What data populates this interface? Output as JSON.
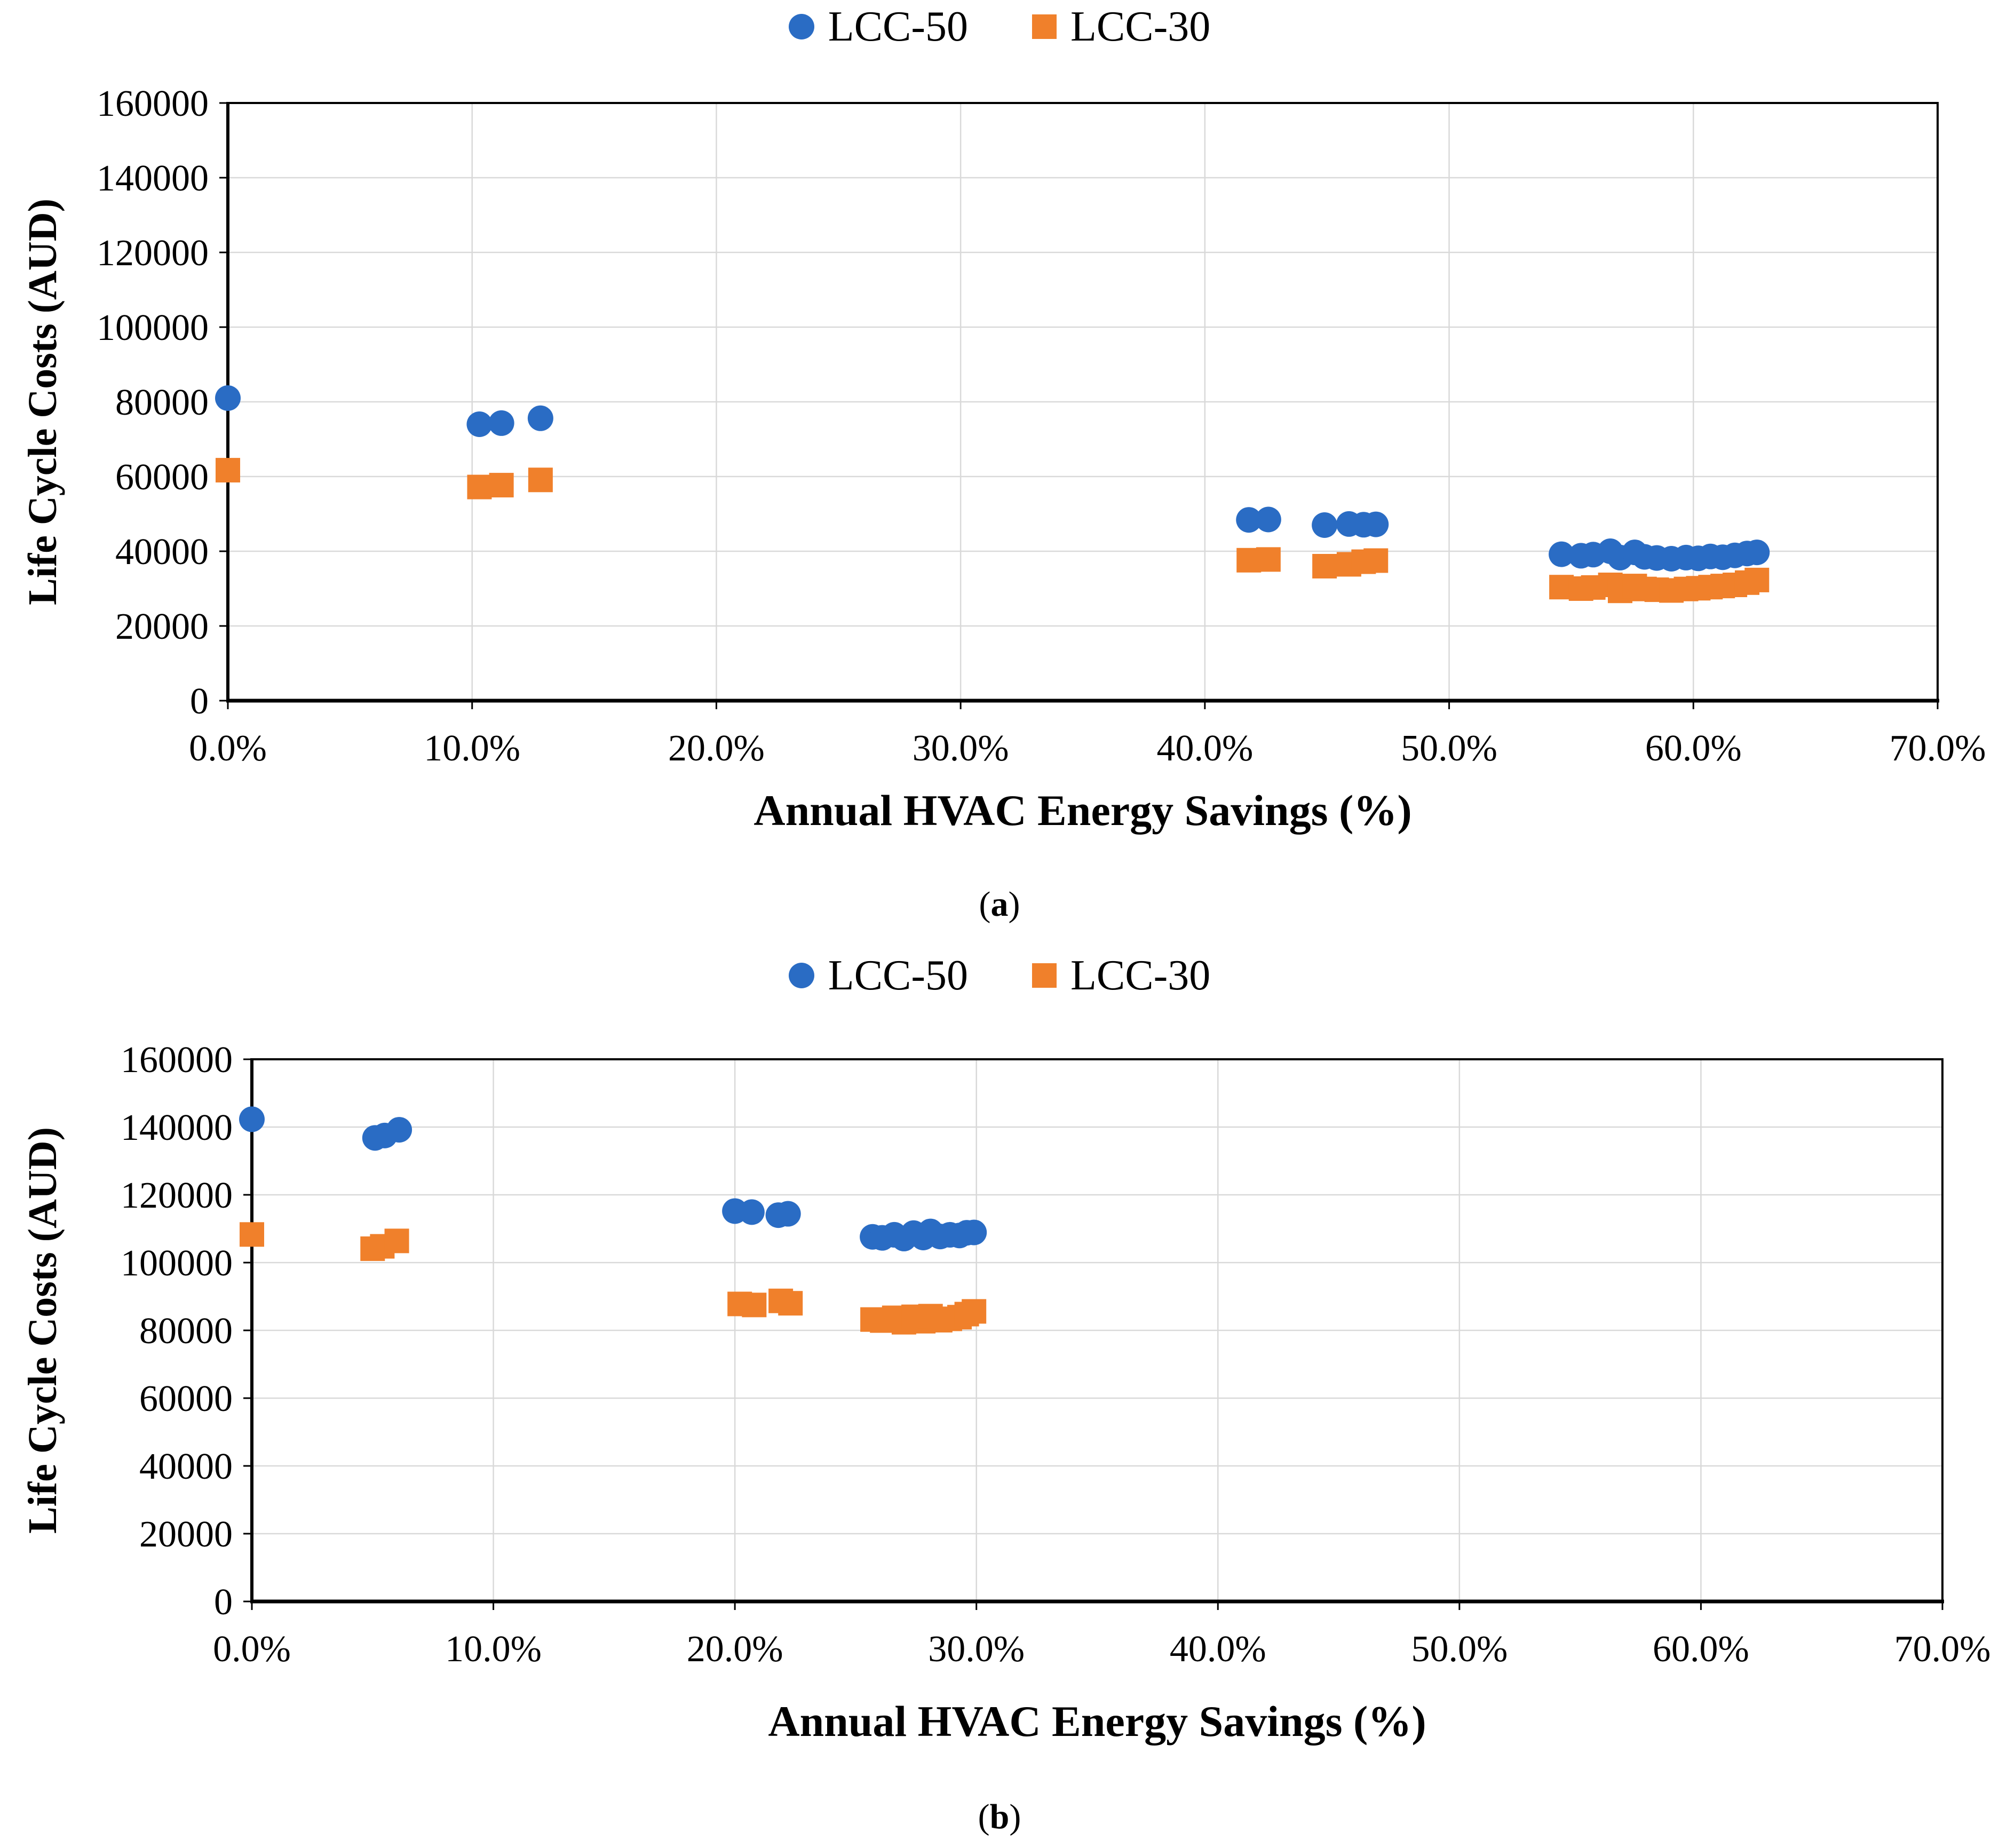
{
  "colors": {
    "lcc50_blue": "#2A6CC4",
    "lcc30_orange": "#F0802B",
    "gridline": "#D9D9D9",
    "axis_frame": "#000000",
    "background": "#FFFFFF"
  },
  "chart_data": [
    {
      "type": "scatter",
      "panel": "a",
      "caption_open": "(",
      "caption_letter": "a",
      "caption_close": ")",
      "xlabel": "Annual HVAC Energy Savings (%)",
      "ylabel": "Life Cycle Costs (AUD)",
      "xlim": [
        0,
        70
      ],
      "ylim": [
        0,
        160000
      ],
      "grid": true,
      "legend_position": "top-center",
      "x_tick_values": [
        0,
        10,
        20,
        30,
        40,
        50,
        60,
        70
      ],
      "x_tick_labels": [
        "0.0%",
        "10.0%",
        "20.0%",
        "30.0%",
        "40.0%",
        "50.0%",
        "60.0%",
        "70.0%"
      ],
      "y_tick_values": [
        0,
        20000,
        40000,
        60000,
        80000,
        100000,
        120000,
        140000,
        160000
      ],
      "y_tick_labels": [
        "0",
        "20000",
        "40000",
        "60000",
        "80000",
        "100000",
        "120000",
        "140000",
        "160000"
      ],
      "series": [
        {
          "name": "LCC-50",
          "marker": "circle",
          "color": "#2A6CC4",
          "points": [
            [
              0.0,
              81000
            ],
            [
              10.3,
              74000
            ],
            [
              11.2,
              74300
            ],
            [
              12.8,
              75600
            ],
            [
              41.8,
              48400
            ],
            [
              42.6,
              48500
            ],
            [
              44.9,
              47000
            ],
            [
              45.9,
              47300
            ],
            [
              46.5,
              47100
            ],
            [
              47.0,
              47200
            ],
            [
              54.6,
              39200
            ],
            [
              55.4,
              38800
            ],
            [
              55.9,
              39100
            ],
            [
              56.6,
              40000
            ],
            [
              57.0,
              38300
            ],
            [
              57.6,
              39700
            ],
            [
              58.0,
              38500
            ],
            [
              58.5,
              38200
            ],
            [
              59.1,
              38000
            ],
            [
              59.7,
              38300
            ],
            [
              60.2,
              38100
            ],
            [
              60.7,
              38600
            ],
            [
              61.2,
              38400
            ],
            [
              61.7,
              38900
            ],
            [
              62.2,
              39400
            ],
            [
              62.6,
              39700
            ]
          ]
        },
        {
          "name": "LCC-30",
          "marker": "square",
          "color": "#F0802B",
          "points": [
            [
              0.0,
              61700
            ],
            [
              10.3,
              57200
            ],
            [
              11.2,
              57700
            ],
            [
              12.8,
              59100
            ],
            [
              41.8,
              37600
            ],
            [
              42.6,
              37800
            ],
            [
              44.9,
              36000
            ],
            [
              45.9,
              36500
            ],
            [
              46.5,
              37200
            ],
            [
              47.0,
              37500
            ],
            [
              54.6,
              30400
            ],
            [
              55.4,
              30000
            ],
            [
              55.9,
              30300
            ],
            [
              56.6,
              31000
            ],
            [
              57.0,
              29400
            ],
            [
              57.6,
              30700
            ],
            [
              58.0,
              29900
            ],
            [
              58.5,
              29700
            ],
            [
              59.1,
              29500
            ],
            [
              59.7,
              29900
            ],
            [
              60.2,
              30100
            ],
            [
              60.7,
              30400
            ],
            [
              61.2,
              30700
            ],
            [
              61.7,
              31000
            ],
            [
              62.2,
              31600
            ],
            [
              62.6,
              32300
            ]
          ]
        }
      ]
    },
    {
      "type": "scatter",
      "panel": "b",
      "caption_open": "(",
      "caption_letter": "b",
      "caption_close": ")",
      "xlabel": "Annual HVAC Energy Savings (%)",
      "ylabel": "Life Cycle Costs (AUD)",
      "xlim": [
        0,
        70
      ],
      "ylim": [
        0,
        160000
      ],
      "grid": true,
      "legend_position": "top-center",
      "x_tick_values": [
        0,
        10,
        20,
        30,
        40,
        50,
        60,
        70
      ],
      "x_tick_labels": [
        "0.0%",
        "10.0%",
        "20.0%",
        "30.0%",
        "40.0%",
        "50.0%",
        "60.0%",
        "70.0%"
      ],
      "y_tick_values": [
        0,
        20000,
        40000,
        60000,
        80000,
        100000,
        120000,
        140000,
        160000
      ],
      "y_tick_labels": [
        "0",
        "20000",
        "40000",
        "60000",
        "80000",
        "100000",
        "120000",
        "140000",
        "160000"
      ],
      "series": [
        {
          "name": "LCC-50",
          "marker": "circle",
          "color": "#2A6CC4",
          "points": [
            [
              0.0,
              142300
            ],
            [
              5.1,
              136800
            ],
            [
              5.5,
              137500
            ],
            [
              6.1,
              139200
            ],
            [
              20.0,
              115200
            ],
            [
              20.7,
              114900
            ],
            [
              21.8,
              114000
            ],
            [
              22.2,
              114400
            ],
            [
              25.7,
              107600
            ],
            [
              26.1,
              107300
            ],
            [
              26.6,
              108200
            ],
            [
              27.0,
              107100
            ],
            [
              27.4,
              108700
            ],
            [
              27.8,
              107400
            ],
            [
              28.1,
              109200
            ],
            [
              28.5,
              107700
            ],
            [
              28.9,
              108200
            ],
            [
              29.3,
              108000
            ],
            [
              29.6,
              108800
            ],
            [
              29.9,
              108900
            ]
          ]
        },
        {
          "name": "LCC-30",
          "marker": "square",
          "color": "#F0802B",
          "points": [
            [
              0.0,
              108300
            ],
            [
              5.0,
              104100
            ],
            [
              5.4,
              104800
            ],
            [
              6.0,
              106400
            ],
            [
              20.2,
              87800
            ],
            [
              20.8,
              87500
            ],
            [
              21.9,
              88700
            ],
            [
              22.3,
              88000
            ],
            [
              25.7,
              83200
            ],
            [
              26.1,
              82900
            ],
            [
              26.6,
              83700
            ],
            [
              27.0,
              82400
            ],
            [
              27.4,
              84000
            ],
            [
              27.8,
              82700
            ],
            [
              28.1,
              84200
            ],
            [
              28.5,
              83000
            ],
            [
              28.9,
              83400
            ],
            [
              29.3,
              83900
            ],
            [
              29.6,
              84800
            ],
            [
              29.9,
              85600
            ]
          ]
        }
      ]
    }
  ]
}
